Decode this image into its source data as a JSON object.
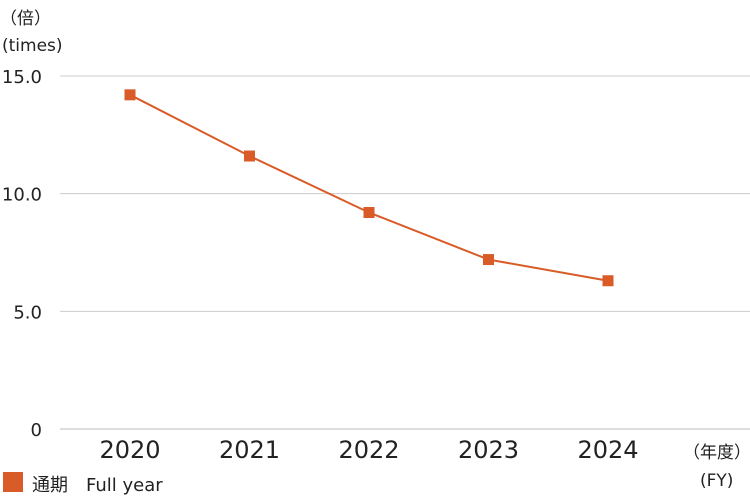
{
  "chart_data": {
    "type": "line",
    "y_unit_label_jp": "（倍）",
    "y_unit_label_en": "(times)",
    "x_unit_label_jp": "（年度）",
    "x_unit_label_en": "(FY)",
    "categories": [
      "2020",
      "2021",
      "2022",
      "2023",
      "2024"
    ],
    "y_ticks": [
      "15.0",
      "10.0",
      "5.0",
      "0"
    ],
    "y_tick_values": [
      15,
      10,
      5,
      0
    ],
    "ylim": [
      0,
      15
    ],
    "grid": true,
    "legend_position": "bottom-left",
    "series": [
      {
        "name": "通期　Full year",
        "values": [
          14.2,
          11.6,
          9.2,
          7.2,
          6.3
        ],
        "color": "#d95b27",
        "marker": "square"
      }
    ]
  }
}
